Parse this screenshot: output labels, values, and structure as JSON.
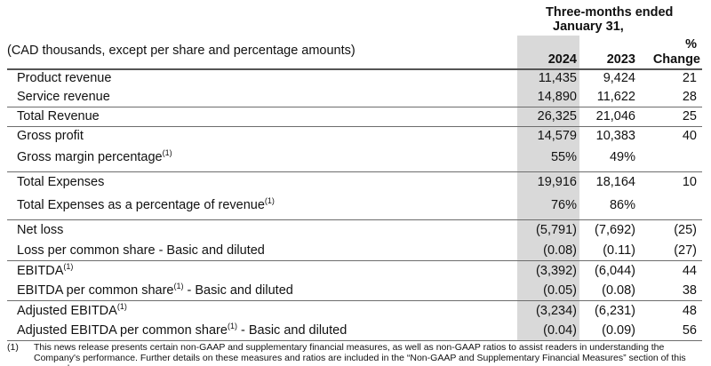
{
  "header": {
    "period_line1": "Three-months ended",
    "period_line2": "January 31,",
    "units": "(CAD thousands, except per share and percentage amounts)",
    "col_2024": "2024",
    "col_2023": "2023",
    "col_change_line1": "%",
    "col_change_line2": "Change"
  },
  "rows": [
    {
      "label": "Product revenue",
      "sup": "",
      "suffix": "",
      "v2024": "11,435",
      "v2023": "9,424",
      "change": "21"
    },
    {
      "label": "Service revenue",
      "sup": "",
      "suffix": "",
      "v2024": "14,890",
      "v2023": "11,622",
      "change": "28"
    },
    {
      "label": "Total Revenue",
      "sup": "",
      "suffix": "",
      "v2024": "26,325",
      "v2023": "21,046",
      "change": "25"
    },
    {
      "label": "Gross profit",
      "sup": "",
      "suffix": "",
      "v2024": "14,579",
      "v2023": "10,383",
      "change": "40"
    },
    {
      "label": "Gross margin percentage",
      "sup": "(1)",
      "suffix": "",
      "v2024": "55%",
      "v2023": "49%",
      "change": ""
    },
    {
      "label": "Total Expenses",
      "sup": "",
      "suffix": "",
      "v2024": "19,916",
      "v2023": "18,164",
      "change": "10"
    },
    {
      "label": "Total Expenses as a percentage of revenue",
      "sup": "(1)",
      "suffix": "",
      "v2024": "76%",
      "v2023": "86%",
      "change": ""
    },
    {
      "label": "Net loss",
      "sup": "",
      "suffix": "",
      "v2024": "(5,791)",
      "v2023": "(7,692)",
      "change": "(25)"
    },
    {
      "label": "Loss per common share - Basic and diluted",
      "sup": "",
      "suffix": "",
      "v2024": "(0.08)",
      "v2023": "(0.11)",
      "change": "(27)"
    },
    {
      "label": "EBITDA",
      "sup": "(1)",
      "suffix": "",
      "v2024": "(3,392)",
      "v2023": "(6,044)",
      "change": "44"
    },
    {
      "label": "EBITDA per common share",
      "sup": "(1)",
      "suffix": " - Basic and diluted",
      "v2024": "(0.05)",
      "v2023": "(0.08)",
      "change": "38"
    },
    {
      "label": "Adjusted EBITDA",
      "sup": "(1)",
      "suffix": "",
      "v2024": "(3,234)",
      "v2023": "(6,231)",
      "change": "48"
    },
    {
      "label": "Adjusted EBITDA per common share",
      "sup": "(1)",
      "suffix": " - Basic and diluted",
      "v2024": "(0.04)",
      "v2023": "(0.09)",
      "change": "56"
    }
  ],
  "footnote": {
    "mark": "(1)",
    "text": "This news release presents certain non-GAAP and supplementary financial measures, as well as non-GAAP ratios to assist readers in understanding the Company's performance. Further details on these measures and ratios are included in the “Non-GAAP and Supplementary Financial Measures” section of this press release."
  }
}
